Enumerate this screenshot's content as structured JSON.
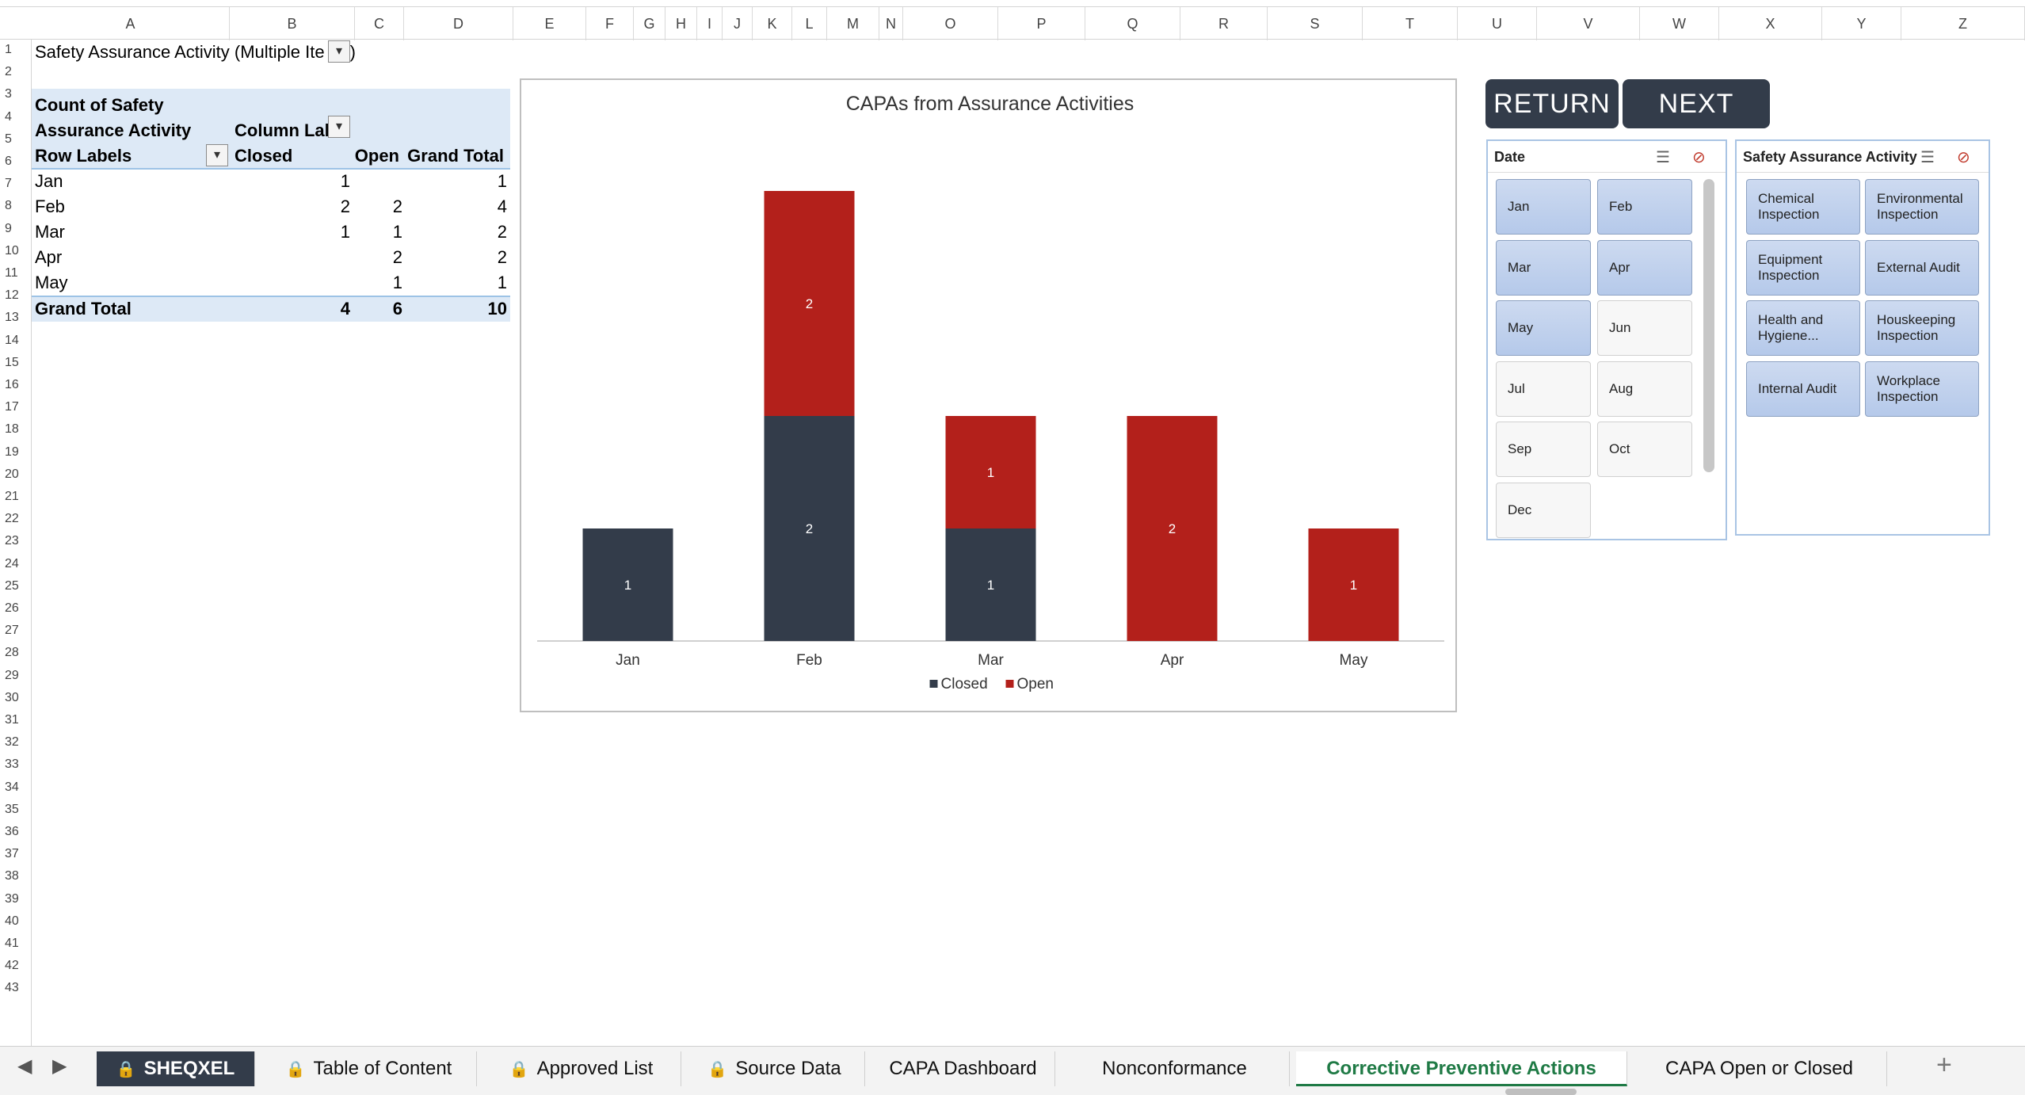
{
  "columns": [
    "A",
    "B",
    "C",
    "D",
    "E",
    "F",
    "G",
    "H",
    "I",
    "J",
    "K",
    "L",
    "M",
    "N",
    "O",
    "P",
    "Q",
    "R",
    "S",
    "T",
    "U",
    "V",
    "W",
    "X",
    "Y",
    "Z"
  ],
  "rows": [
    "1",
    "2",
    "3",
    "4",
    "5",
    "6",
    "7",
    "8",
    "9",
    "10",
    "11",
    "12",
    "13",
    "14",
    "15",
    "16",
    "17",
    "18",
    "19",
    "20",
    "21",
    "22",
    "23",
    "24",
    "25",
    "26",
    "27",
    "28",
    "29",
    "30",
    "31",
    "32",
    "33",
    "34",
    "35",
    "36",
    "37",
    "38",
    "39",
    "40",
    "41",
    "42",
    "43"
  ],
  "pivot": {
    "page_filter": "Safety Assurance Activity (Multiple Ite",
    "page_filter_close": ")",
    "header_count_line1": "Count of Safety",
    "header_count_line2": "Assurance Activity",
    "column_labels": "Column Lab",
    "row_labels": "Row Labels",
    "col_closed": "Closed",
    "col_open": "Open",
    "col_grand_total": "Grand Total",
    "body": [
      {
        "label": "Jan",
        "closed": "1",
        "open": "",
        "total": "1"
      },
      {
        "label": "Feb",
        "closed": "2",
        "open": "2",
        "total": "4"
      },
      {
        "label": "Mar",
        "closed": "1",
        "open": "1",
        "total": "2"
      },
      {
        "label": "Apr",
        "closed": "",
        "open": "2",
        "total": "2"
      },
      {
        "label": "May",
        "closed": "",
        "open": "1",
        "total": "1"
      }
    ],
    "grand": {
      "label": "Grand Total",
      "closed": "4",
      "open": "6",
      "total": "10"
    }
  },
  "chart_data": {
    "type": "bar",
    "stacked": true,
    "title": "CAPAs from Assurance Activities",
    "categories": [
      "Jan",
      "Feb",
      "Mar",
      "Apr",
      "May"
    ],
    "series": [
      {
        "name": "Closed",
        "values": [
          1,
          2,
          1,
          0,
          0
        ],
        "color": "#333c4a"
      },
      {
        "name": "Open",
        "values": [
          0,
          2,
          1,
          2,
          1
        ],
        "color": "#b3201b"
      }
    ],
    "ylim": [
      0,
      4
    ],
    "grid": false,
    "legend": "bottom",
    "data_labels": true
  },
  "buttons": {
    "return": "RETURN",
    "next": "NEXT"
  },
  "date_slicer": {
    "title": "Date",
    "items": [
      {
        "label": "Jan",
        "selected": true
      },
      {
        "label": "Feb",
        "selected": true
      },
      {
        "label": "Mar",
        "selected": true
      },
      {
        "label": "Apr",
        "selected": true
      },
      {
        "label": "May",
        "selected": true
      },
      {
        "label": "Jun",
        "selected": false
      },
      {
        "label": "Jul",
        "selected": false
      },
      {
        "label": "Aug",
        "selected": false
      },
      {
        "label": "Sep",
        "selected": false
      },
      {
        "label": "Oct",
        "selected": false
      },
      {
        "label": "Dec",
        "selected": false
      }
    ]
  },
  "activity_slicer": {
    "title": "Safety Assurance Activity",
    "items": [
      {
        "label": "Chemical Inspection",
        "selected": true
      },
      {
        "label": "Environmental Inspection",
        "selected": true
      },
      {
        "label": "Equipment Inspection",
        "selected": true
      },
      {
        "label": "External Audit",
        "selected": true
      },
      {
        "label": "Health and Hygiene...",
        "selected": true
      },
      {
        "label": "Houskeeping Inspection",
        "selected": true
      },
      {
        "label": "Internal Audit",
        "selected": true
      },
      {
        "label": "Workplace Inspection",
        "selected": true
      }
    ]
  },
  "tabs": [
    {
      "label": "SHEQXEL",
      "locked": true,
      "style": "dark"
    },
    {
      "label": "Table of Content",
      "locked": true,
      "style": "normal"
    },
    {
      "label": "Approved List",
      "locked": true,
      "style": "normal"
    },
    {
      "label": "Source Data",
      "locked": true,
      "style": "normal"
    },
    {
      "label": "CAPA Dashboard",
      "locked": false,
      "style": "normal"
    },
    {
      "label": "Nonconformance",
      "locked": false,
      "style": "normal"
    },
    {
      "label": "Corrective Preventive Actions",
      "locked": false,
      "style": "active"
    },
    {
      "label": "CAPA Open or Closed",
      "locked": false,
      "style": "normal"
    }
  ],
  "icons": {
    "lock": "lock-icon",
    "add": "plus-icon",
    "prev": "arrow-left-icon",
    "next": "arrow-right-icon"
  }
}
